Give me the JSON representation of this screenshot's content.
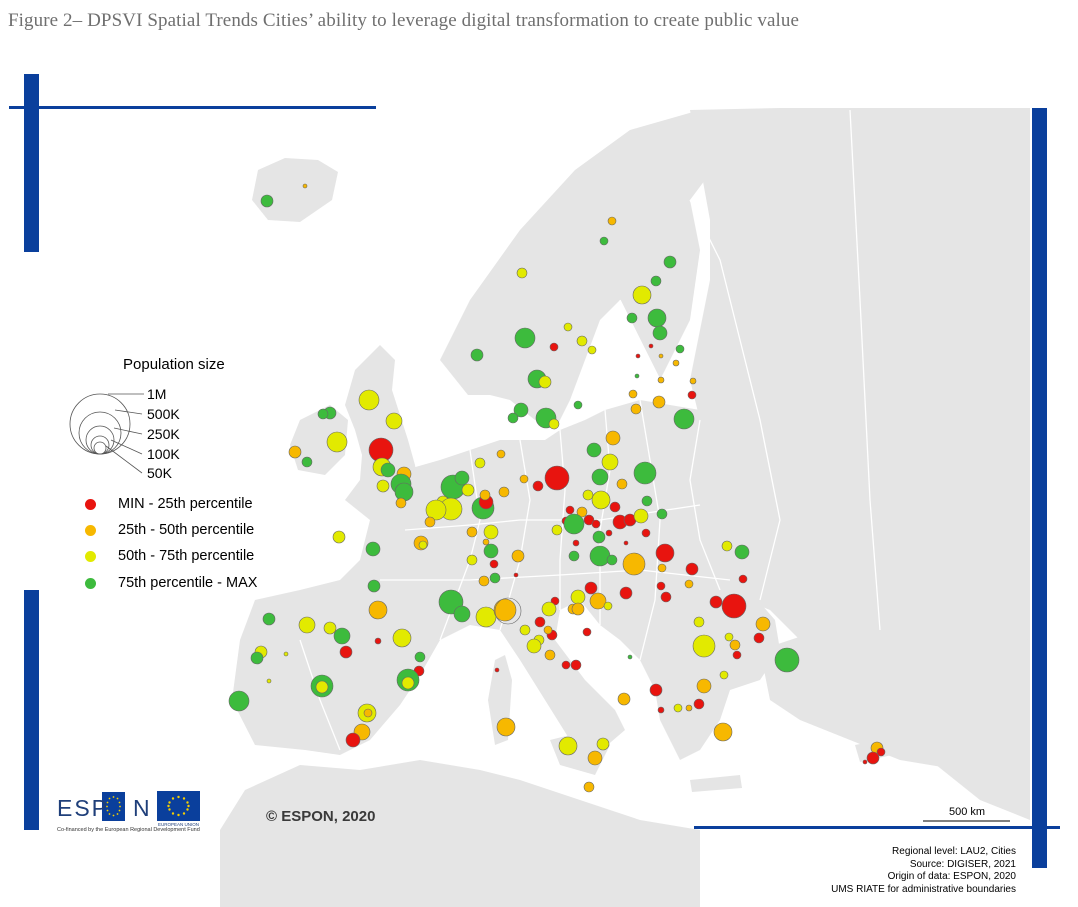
{
  "figure": {
    "title": "Figure 2– DPSVI Spatial Trends Cities’ ability to leverage digital transformation to create public value"
  },
  "legend": {
    "size_title": "Population size",
    "size_labels": [
      "1M",
      "500K",
      "250K",
      "100K",
      "50K"
    ],
    "categories": [
      {
        "label": "MIN - 25th percentile",
        "color": "#e8140f"
      },
      {
        "label": "25th - 50th percentile",
        "color": "#f7b800"
      },
      {
        "label": "50th - 75th percentile",
        "color": "#e2ea00"
      },
      {
        "label": "75th percentile - MAX",
        "color": "#3dbb3d"
      }
    ]
  },
  "colors": {
    "land": "#e5e5e5",
    "sea": "#ffffff",
    "borders": "#ffffff",
    "frame": "#0a3f9c"
  },
  "logo": {
    "left_text": "ESP",
    "right_text": "N",
    "cofinanced": "Co-financed by the European Regional Development Fund",
    "eu_label": "EUROPEAN UNION"
  },
  "copyright": "© ESPON, 2020",
  "scale_bar": "500 km",
  "sources": [
    "Regional level: LAU2, Cities",
    "Source: DIGISER, 2021",
    "Origin of data: ESPON, 2020",
    "UMS RIATE for administrative boundaries"
  ]
}
